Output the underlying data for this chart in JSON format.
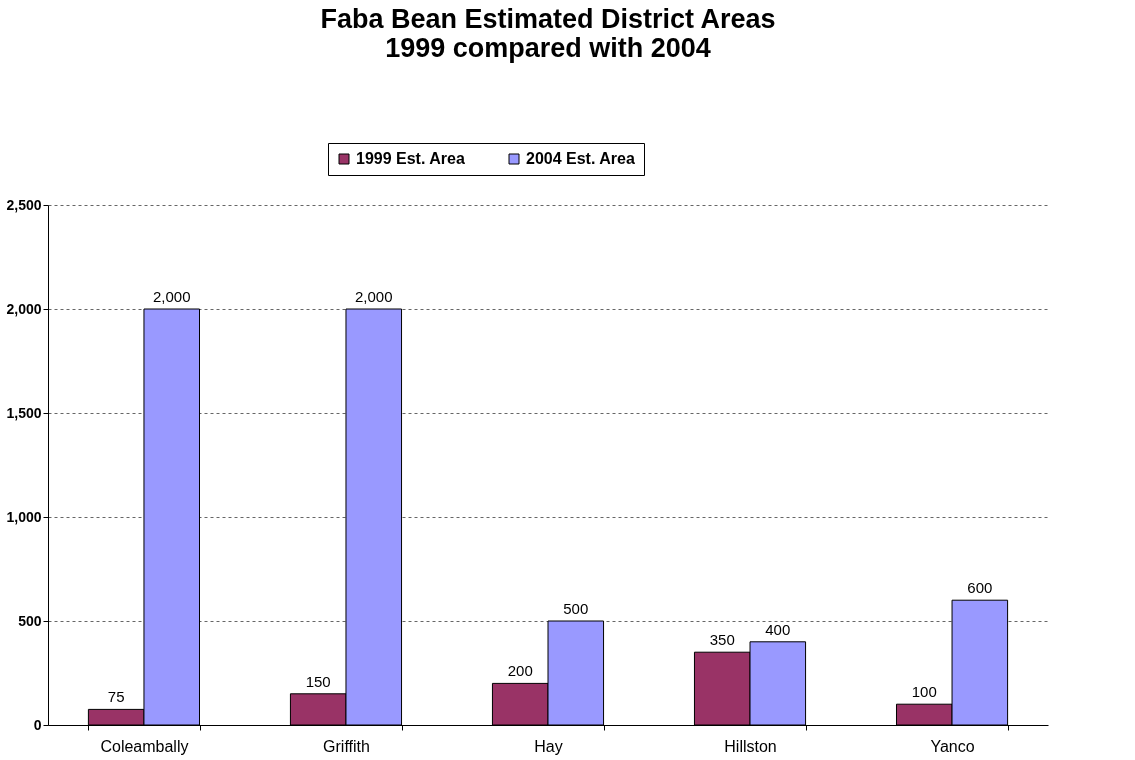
{
  "chart_data": {
    "type": "bar",
    "title": [
      "Faba Bean Estimated District Areas",
      "1999 compared with 2004"
    ],
    "categories": [
      "Coleambally",
      "Griffith",
      "Hay",
      "Hillston",
      "Yanco"
    ],
    "series": [
      {
        "name": "1999 Est. Area",
        "color": "#993366",
        "values": [
          75,
          150,
          200,
          350,
          100
        ],
        "value_labels": [
          "75",
          "150",
          "200",
          "350",
          "100"
        ]
      },
      {
        "name": "2004 Est. Area",
        "color": "#9999ff",
        "values": [
          2000,
          2000,
          500,
          400,
          600
        ],
        "value_labels": [
          "2,000",
          "2,000",
          "500",
          "400",
          "600"
        ]
      }
    ],
    "ylim": [
      0,
      2500
    ],
    "yticks": [
      0,
      500,
      {
        "value": 1000,
        "label": "1,000"
      },
      {
        "value": 1500,
        "label": "1,500"
      },
      {
        "value": 2000,
        "label": "2,000"
      },
      {
        "value": 2500,
        "label": "2,500"
      }
    ],
    "grid": "y",
    "legend": "top"
  }
}
